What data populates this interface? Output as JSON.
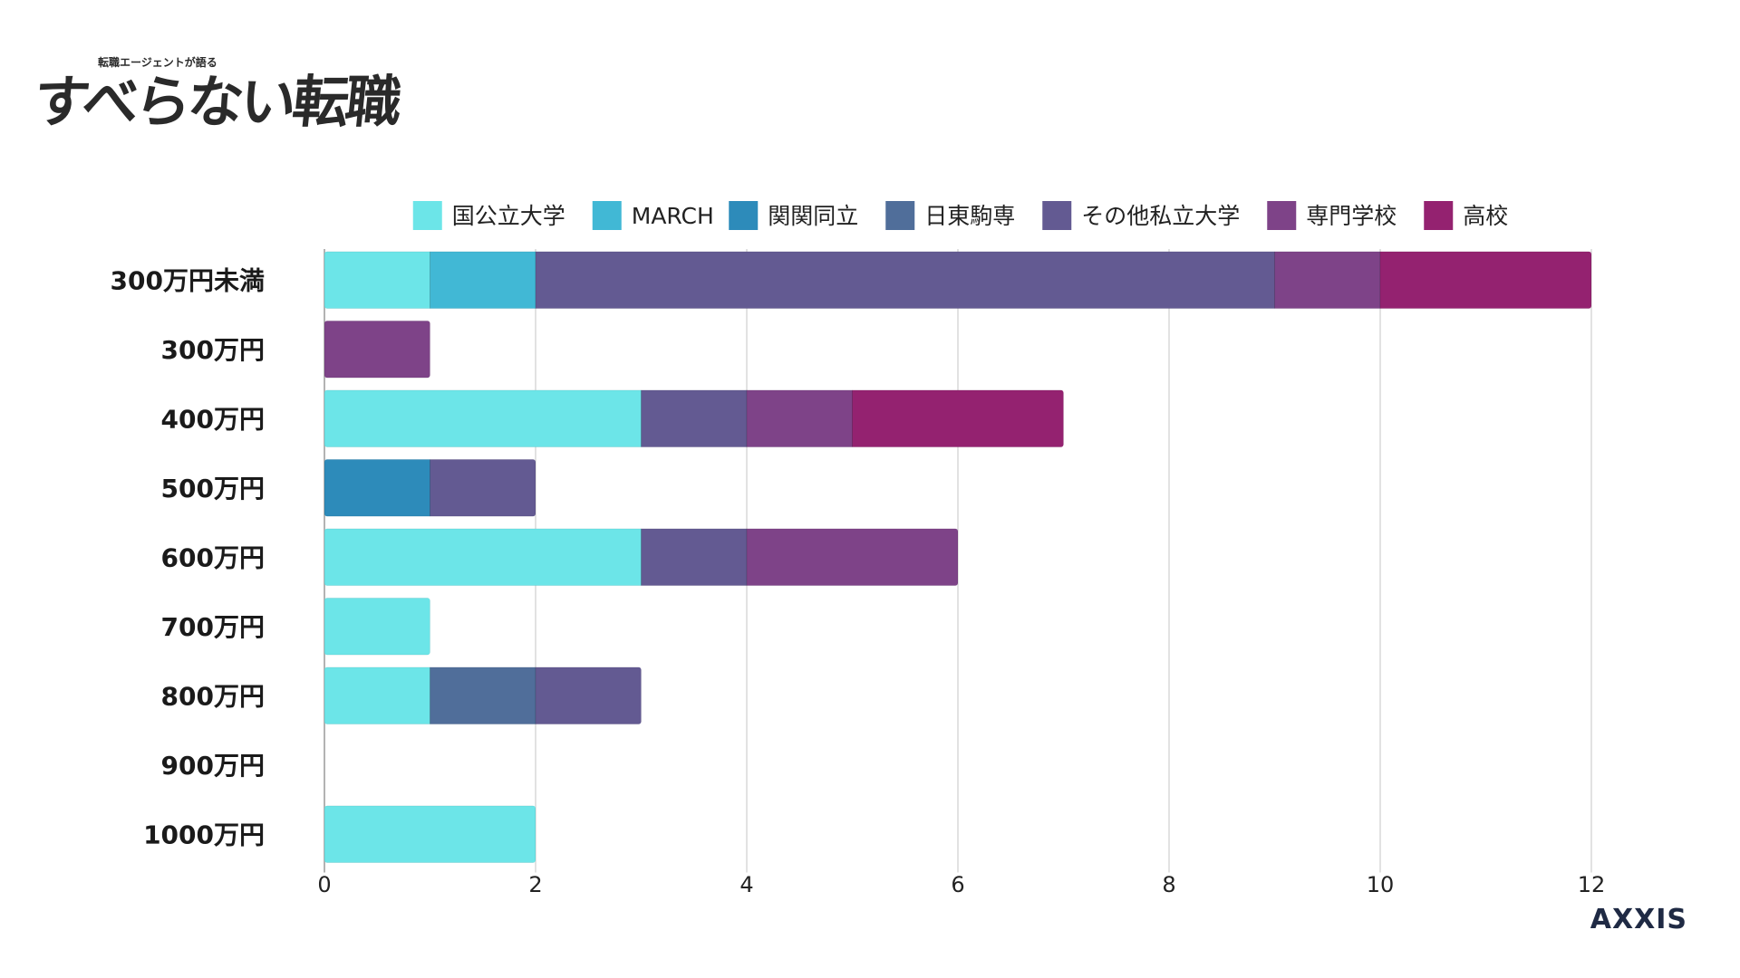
{
  "logo": {
    "tagline": "転職エージェントが語る",
    "name": "すべらない転職"
  },
  "brand": "AXXIS",
  "chart_data": {
    "type": "bar",
    "orientation": "horizontal",
    "stacked": true,
    "title": "",
    "xlabel": "",
    "ylabel": "",
    "xlim": [
      0,
      12
    ],
    "x_ticks": [
      0,
      2,
      4,
      6,
      8,
      10,
      12
    ],
    "grid": true,
    "legend_position": "top",
    "categories": [
      "300万円未満",
      "300万円",
      "400万円",
      "500万円",
      "600万円",
      "700万円",
      "800万円",
      "900万円",
      "1000万円"
    ],
    "series": [
      {
        "name": "国公立大学",
        "color": "#6ce5e8",
        "values": [
          1,
          0,
          3,
          0,
          3,
          1,
          1,
          0,
          2
        ]
      },
      {
        "name": "MARCH",
        "color": "#41b8d5",
        "values": [
          1,
          0,
          0,
          0,
          0,
          0,
          0,
          0,
          0
        ]
      },
      {
        "name": "関関同立",
        "color": "#2d8bba",
        "values": [
          0,
          0,
          0,
          1,
          0,
          0,
          0,
          0,
          0
        ]
      },
      {
        "name": "日東駒専",
        "color": "#506e9a",
        "values": [
          0,
          0,
          0,
          0,
          0,
          0,
          1,
          0,
          0
        ]
      },
      {
        "name": "その他私立大学",
        "color": "#635a92",
        "values": [
          7,
          0,
          1,
          1,
          1,
          0,
          1,
          0,
          0
        ]
      },
      {
        "name": "専門学校",
        "color": "#7e4388",
        "values": [
          1,
          1,
          1,
          0,
          2,
          0,
          0,
          0,
          0
        ]
      },
      {
        "name": "高校",
        "color": "#942270",
        "values": [
          2,
          0,
          2,
          0,
          0,
          0,
          0,
          0,
          0
        ]
      }
    ]
  }
}
